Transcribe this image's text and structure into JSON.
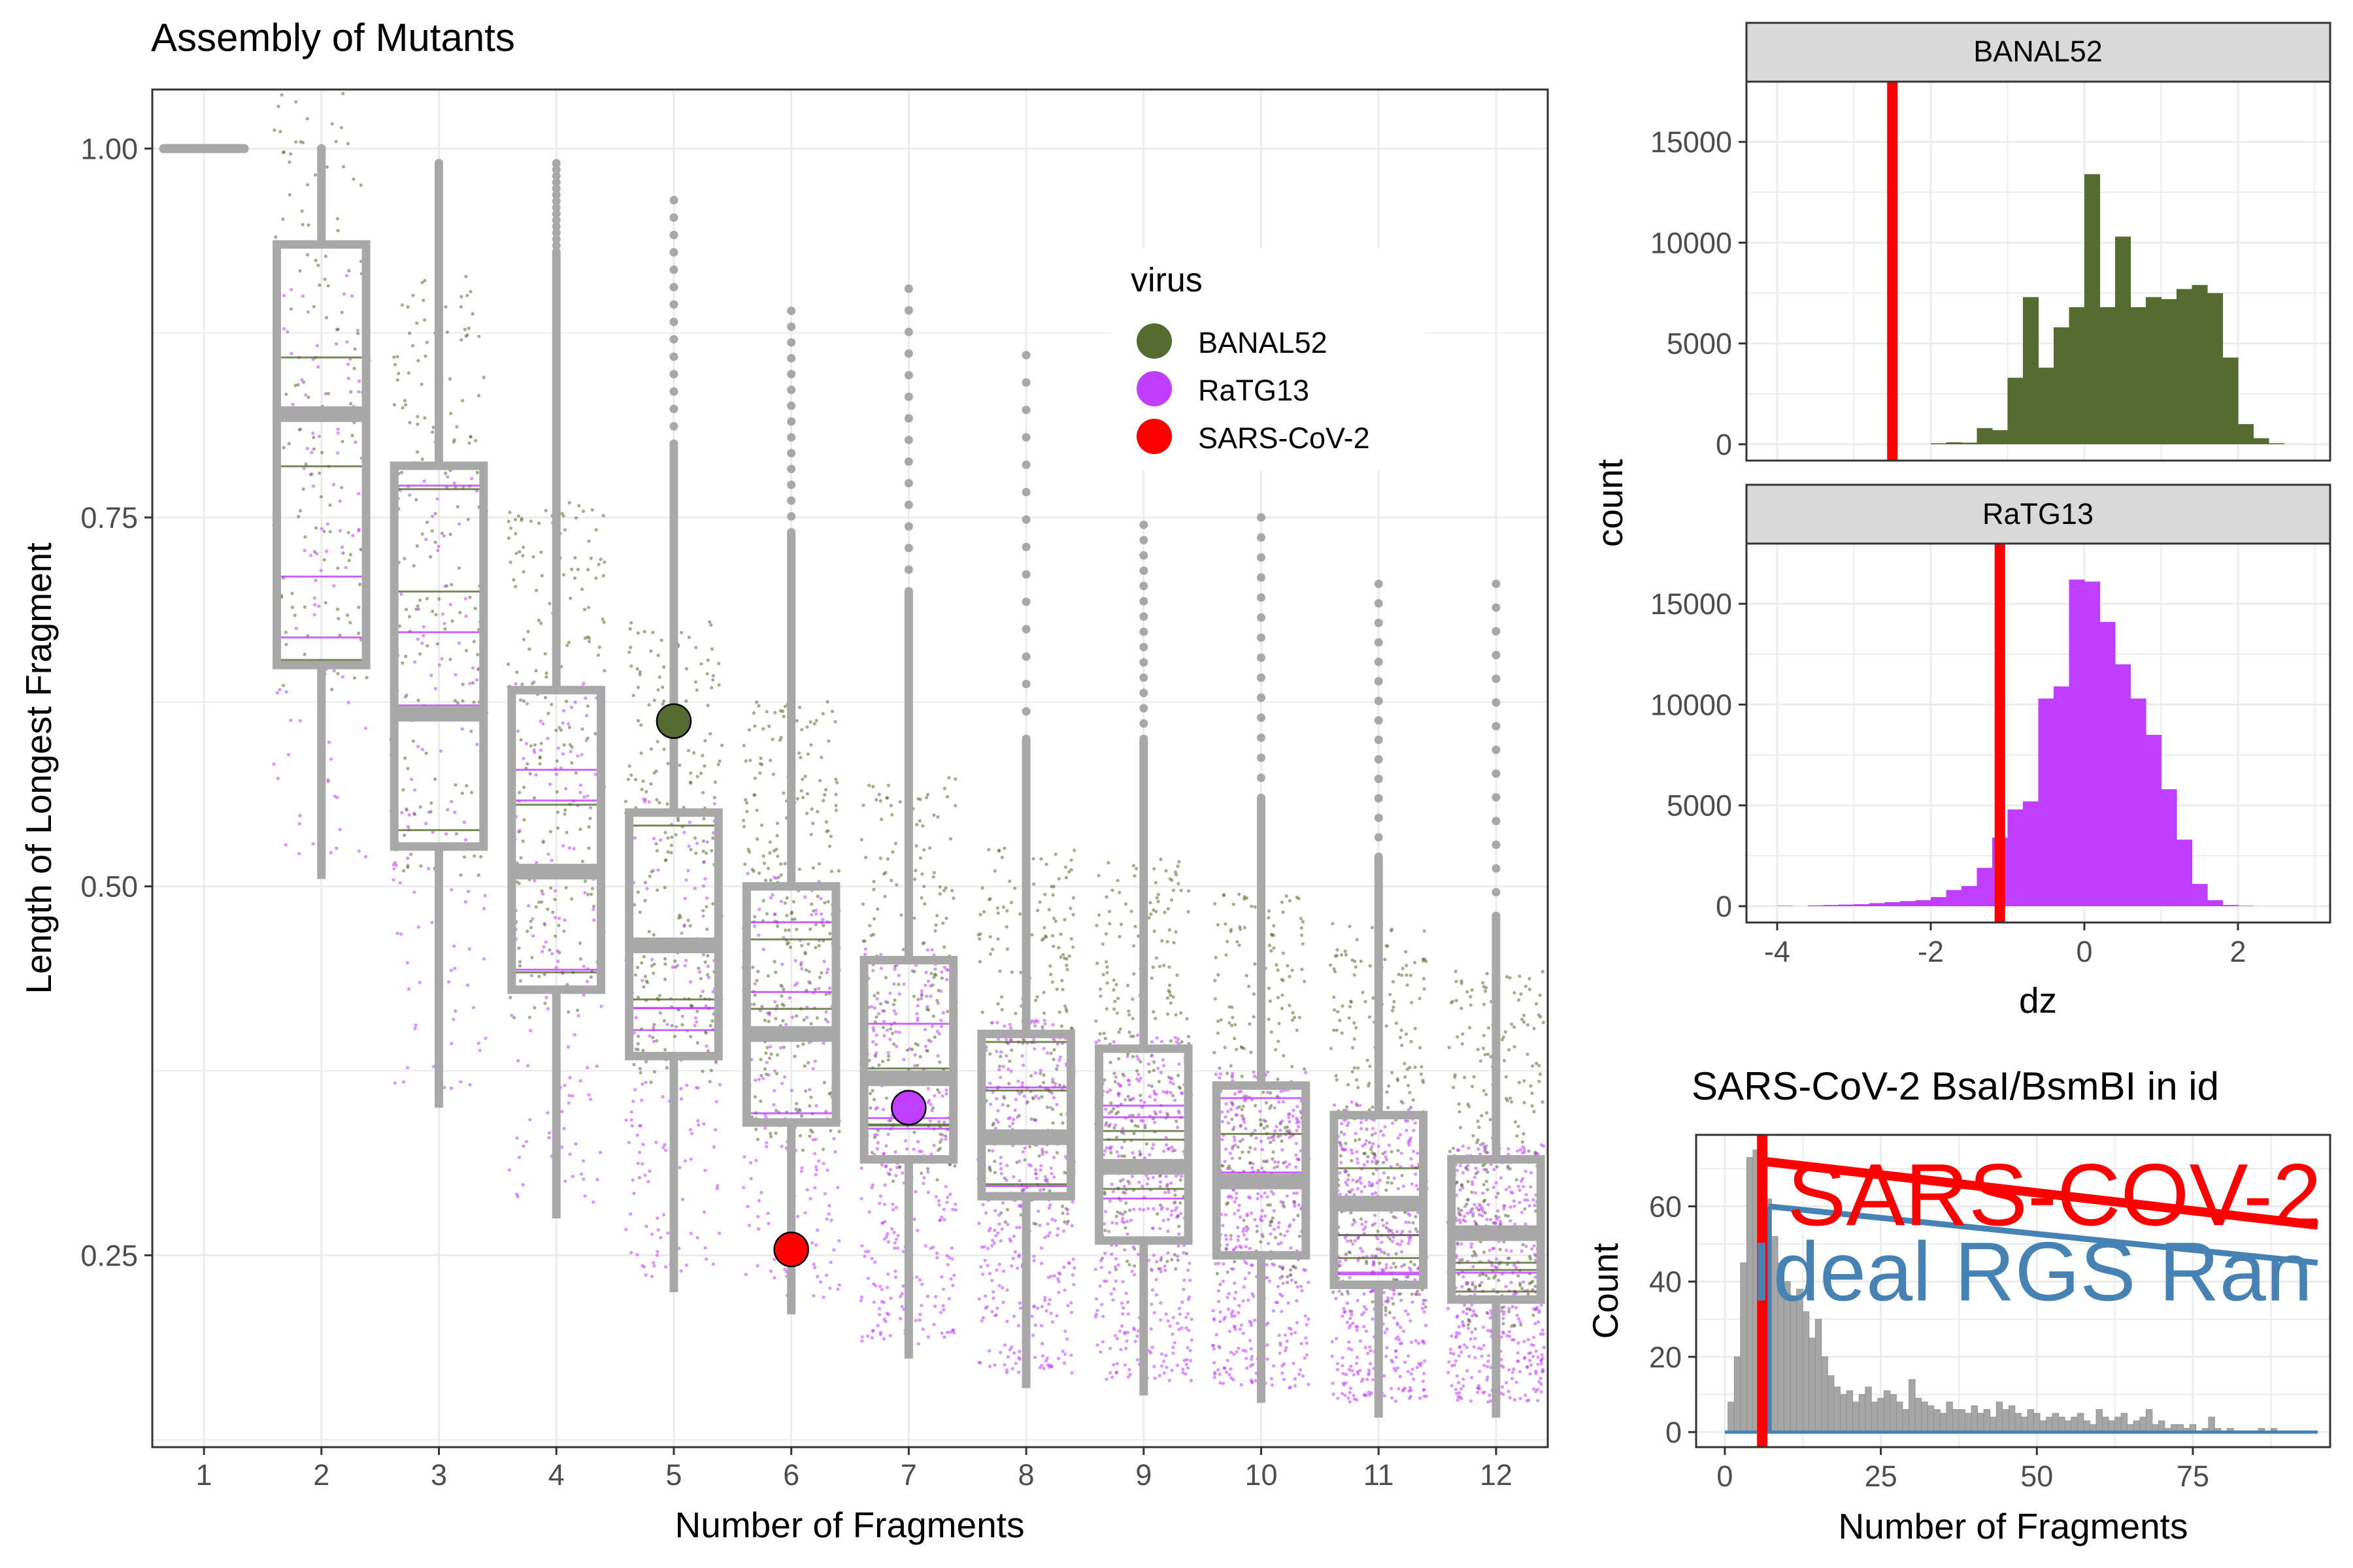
{
  "colors": {
    "banal52": "#556B2F",
    "ratg13": "#BF3EFF",
    "sars_cov_2": "#FF0000",
    "box": "#A8A8A8",
    "ideal": "#4682B4",
    "hist_gray": "#A6A6A6",
    "grid": "#EBEBEB",
    "strip": "#D9D9D9"
  },
  "chart_data": [
    {
      "type": "box",
      "title": "Assembly of Mutants",
      "xlabel": "Number of Fragments",
      "ylabel": "Length of Longest Fragment",
      "categories": [
        "1",
        "2",
        "3",
        "4",
        "5",
        "6",
        "7",
        "8",
        "9",
        "10",
        "11",
        "12"
      ],
      "yticks": [
        "0.25",
        "0.50",
        "0.75",
        "1.00"
      ],
      "ylim": [
        0.12,
        1.04
      ],
      "boxes": [
        {
          "n": 1,
          "min": 1.0,
          "q1": 1.0,
          "median": 1.0,
          "q3": 1.0,
          "max": 1.0
        },
        {
          "n": 2,
          "min": 0.505,
          "q1": 0.65,
          "median": 0.82,
          "q3": 0.935,
          "max": 1.0
        },
        {
          "n": 3,
          "min": 0.35,
          "q1": 0.527,
          "median": 0.617,
          "q3": 0.785,
          "max": 0.99
        },
        {
          "n": 4,
          "min": 0.275,
          "q1": 0.43,
          "median": 0.51,
          "q3": 0.633,
          "max": 0.93
        },
        {
          "n": 5,
          "min": 0.225,
          "q1": 0.385,
          "median": 0.46,
          "q3": 0.55,
          "max": 0.8
        },
        {
          "n": 6,
          "min": 0.21,
          "q1": 0.34,
          "median": 0.4,
          "q3": 0.5,
          "max": 0.74
        },
        {
          "n": 7,
          "min": 0.18,
          "q1": 0.315,
          "median": 0.37,
          "q3": 0.45,
          "max": 0.7
        },
        {
          "n": 8,
          "min": 0.16,
          "q1": 0.29,
          "median": 0.33,
          "q3": 0.4,
          "max": 0.6
        },
        {
          "n": 9,
          "min": 0.155,
          "q1": 0.26,
          "median": 0.31,
          "q3": 0.39,
          "max": 0.6
        },
        {
          "n": 10,
          "min": 0.15,
          "q1": 0.25,
          "median": 0.3,
          "q3": 0.365,
          "max": 0.56
        },
        {
          "n": 11,
          "min": 0.14,
          "q1": 0.23,
          "median": 0.285,
          "q3": 0.345,
          "max": 0.52
        },
        {
          "n": 12,
          "min": 0.14,
          "q1": 0.22,
          "median": 0.265,
          "q3": 0.315,
          "max": 0.48
        }
      ],
      "outlier_max": [
        1.0,
        1.0,
        0.99,
        0.99,
        0.965,
        0.89,
        0.905,
        0.86,
        0.745,
        0.75,
        0.705,
        0.705
      ],
      "highlight_points": [
        {
          "virus": "BANAL52",
          "x": 5,
          "y": 0.612
        },
        {
          "virus": "RaTG13",
          "x": 7,
          "y": 0.35
        },
        {
          "virus": "SARS-CoV-2",
          "x": 6,
          "y": 0.254
        }
      ],
      "legend": {
        "title": "virus",
        "position": "top-right",
        "entries": [
          "BANAL52",
          "RaTG13",
          "SARS-CoV-2"
        ]
      }
    },
    {
      "type": "bar",
      "title": "",
      "facets": [
        "BANAL52",
        "RaTG13"
      ],
      "xlabel": "dz",
      "ylabel": "count",
      "xticks": [
        "-4",
        "-2",
        "0",
        "2"
      ],
      "yticks": [
        "0",
        "5000",
        "10000",
        "15000"
      ],
      "xlim": [
        -4.4,
        3.2
      ],
      "ylim": [
        0,
        17500
      ],
      "bin_width": 0.2,
      "series": [
        {
          "name": "BANAL52",
          "bin_starts": [
            -2.0,
            -1.8,
            -1.6,
            -1.4,
            -1.2,
            -1.0,
            -0.8,
            -0.6,
            -0.4,
            -0.2,
            0.0,
            0.2,
            0.4,
            0.6,
            0.8,
            1.0,
            1.2,
            1.4,
            1.6,
            1.8,
            2.0,
            2.2,
            2.4
          ],
          "values": [
            50,
            100,
            80,
            800,
            700,
            3300,
            7300,
            3800,
            5800,
            6800,
            13400,
            6800,
            10300,
            6800,
            7300,
            7200,
            7700,
            7900,
            7500,
            4300,
            1000,
            300,
            50
          ],
          "vline": -2.5
        },
        {
          "name": "RaTG13",
          "bin_starts": [
            -4.0,
            -3.6,
            -3.4,
            -3.2,
            -3.0,
            -2.8,
            -2.6,
            -2.4,
            -2.2,
            -2.0,
            -1.8,
            -1.6,
            -1.4,
            -1.2,
            -1.0,
            -0.8,
            -0.6,
            -0.4,
            -0.2,
            0.0,
            0.2,
            0.4,
            0.6,
            0.8,
            1.0,
            1.2,
            1.4,
            1.6,
            1.8,
            2.0
          ],
          "values": [
            20,
            40,
            60,
            80,
            100,
            150,
            200,
            250,
            300,
            450,
            800,
            1000,
            1900,
            3400,
            4800,
            5200,
            10300,
            10900,
            16200,
            16100,
            14100,
            12000,
            10300,
            8500,
            5800,
            3300,
            1100,
            300,
            60,
            20
          ],
          "vline": -1.1
        }
      ]
    },
    {
      "type": "bar",
      "title": "SARS-CoV-2 BsaI/BsmBI in id",
      "xlabel": "Number of Fragments",
      "ylabel": "Count",
      "xticks": [
        "0",
        "25",
        "50",
        "75"
      ],
      "yticks": [
        "0",
        "20",
        "40",
        "60"
      ],
      "xlim": [
        -4.6,
        97
      ],
      "ylim": [
        -4,
        79
      ],
      "bin_width": 1,
      "bins_from": 1,
      "values": [
        8,
        20,
        45,
        73,
        75,
        68,
        62,
        52,
        45,
        40,
        35,
        38,
        32,
        25,
        30,
        20,
        15,
        12,
        10,
        11,
        8,
        10,
        12,
        8,
        9,
        11,
        10,
        8,
        6,
        14,
        9,
        8,
        7,
        6,
        5,
        8,
        6,
        6,
        5,
        7,
        5,
        6,
        4,
        8,
        6,
        7,
        5,
        4,
        6,
        5,
        3,
        4,
        5,
        4,
        3,
        4,
        5,
        3,
        2,
        6,
        4,
        3,
        4,
        5,
        2,
        3,
        4,
        6,
        2,
        3,
        1,
        2,
        2,
        1,
        2,
        0,
        1,
        4,
        1,
        0,
        1,
        0,
        0,
        0,
        0,
        1,
        0,
        1,
        0,
        0,
        0,
        0
      ],
      "annotations": [
        {
          "label": "SARS-COV-2",
          "color": "#FF0000",
          "vline": 6,
          "line": [
            [
              6,
              72
            ],
            [
              95,
              55
            ]
          ]
        },
        {
          "label": "Ideal RGS Ran",
          "color": "#4682B4",
          "vline": 7,
          "line": [
            [
              7,
              60
            ],
            [
              95,
              45
            ]
          ]
        }
      ]
    }
  ]
}
